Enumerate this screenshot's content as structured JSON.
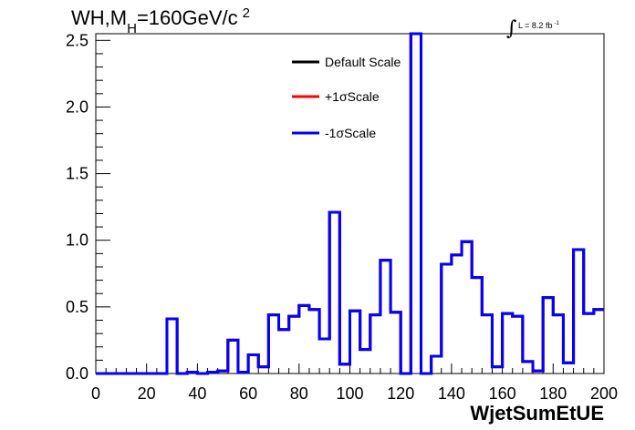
{
  "chart_data": {
    "type": "line",
    "title_main": "WH,M",
    "title_sub": "H",
    "title_rest": "=160GeV/c",
    "title_sup": "2",
    "lumi_text": "L = 8.2 fb",
    "lumi_sup": "-1",
    "lumi_symbol": "∫",
    "xlabel": "WjetSumEtUE",
    "ylabel": "",
    "xlim": [
      0,
      200
    ],
    "ylim": [
      0,
      2.55
    ],
    "x_ticks": [
      "0",
      "20",
      "40",
      "60",
      "80",
      "100",
      "120",
      "140",
      "160",
      "180",
      "200"
    ],
    "y_ticks": [
      "0.0",
      "0.5",
      "1.0",
      "1.5",
      "2.0",
      "2.5"
    ],
    "bin_width": 4,
    "legend_position": "top-center",
    "grid": false,
    "series": [
      {
        "name": "Default Scale",
        "color": "#000000",
        "values": [
          0,
          0,
          0,
          0,
          0,
          0,
          0,
          0.41,
          0,
          0.01,
          0,
          0.01,
          0.02,
          0.25,
          0.01,
          0.14,
          0.05,
          0.44,
          0.33,
          0.43,
          0.51,
          0.48,
          0.26,
          1.21,
          0.07,
          0.47,
          0.18,
          0.44,
          0.85,
          0.46,
          0,
          2.55,
          0,
          0.13,
          0.82,
          0.89,
          0.99,
          0.72,
          0.44,
          0.05,
          0.45,
          0.43,
          0.09,
          0.02,
          0.57,
          0.44,
          0.08,
          0.93,
          0.45,
          0.48
        ]
      },
      {
        "name": "+1σScale",
        "color": "#ff0000",
        "values": [
          0,
          0,
          0,
          0,
          0,
          0,
          0,
          0.41,
          0,
          0.01,
          0,
          0.01,
          0.02,
          0.25,
          0.01,
          0.14,
          0.05,
          0.44,
          0.33,
          0.43,
          0.51,
          0.48,
          0.26,
          1.21,
          0.07,
          0.47,
          0.18,
          0.44,
          0.85,
          0.46,
          0,
          2.55,
          0,
          0.13,
          0.82,
          0.89,
          0.99,
          0.72,
          0.44,
          0.05,
          0.45,
          0.43,
          0.09,
          0.02,
          0.57,
          0.44,
          0.08,
          0.93,
          0.45,
          0.48
        ]
      },
      {
        "name": "-1σScale",
        "color": "#0000ff",
        "values": [
          0,
          0,
          0,
          0,
          0,
          0,
          0,
          0.41,
          0,
          0.01,
          0,
          0.01,
          0.02,
          0.25,
          0.01,
          0.14,
          0.05,
          0.44,
          0.33,
          0.43,
          0.51,
          0.48,
          0.26,
          1.21,
          0.07,
          0.47,
          0.18,
          0.44,
          0.85,
          0.46,
          0,
          2.55,
          0,
          0.13,
          0.82,
          0.89,
          0.99,
          0.72,
          0.44,
          0.05,
          0.45,
          0.43,
          0.09,
          0.02,
          0.57,
          0.44,
          0.08,
          0.93,
          0.45,
          0.48
        ]
      }
    ]
  }
}
